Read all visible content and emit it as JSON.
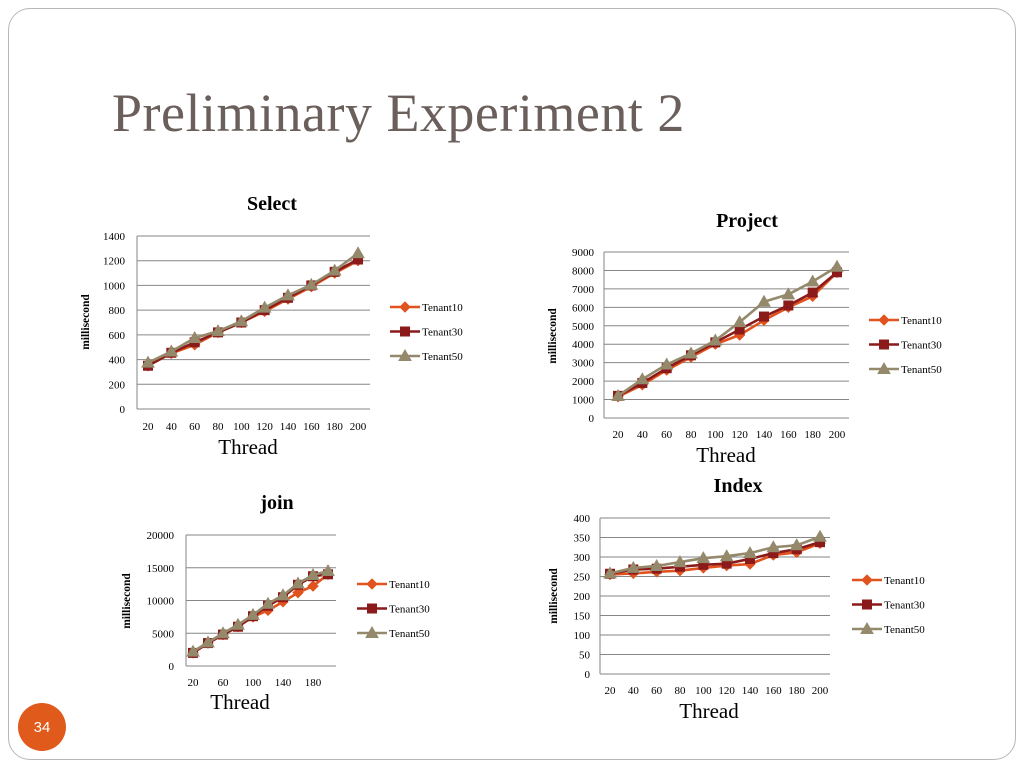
{
  "slide": {
    "title": "Preliminary  Experiment 2",
    "page_number": "34"
  },
  "colors": {
    "tenant10": "#e0531f",
    "tenant30": "#8b1a1a",
    "tenant50": "#94896b"
  },
  "chart_data": [
    {
      "type": "line",
      "title": "Select",
      "xlabel": "Thread",
      "ylabel": "millisecond",
      "categories": [
        "20",
        "40",
        "60",
        "80",
        "100",
        "120",
        "140",
        "160",
        "180",
        "200"
      ],
      "ylim": [
        0,
        1400
      ],
      "yticks": [
        0,
        200,
        400,
        600,
        800,
        1000,
        1200,
        1400
      ],
      "grid": true,
      "legend": "right",
      "series": [
        {
          "name": "Tenant10",
          "values": [
            350,
            450,
            520,
            620,
            700,
            790,
            890,
            990,
            1100,
            1200
          ]
        },
        {
          "name": "Tenant30",
          "values": [
            350,
            455,
            540,
            620,
            700,
            800,
            900,
            1000,
            1110,
            1210
          ]
        },
        {
          "name": "Tenant50",
          "values": [
            375,
            465,
            575,
            630,
            710,
            820,
            920,
            1005,
            1120,
            1260
          ]
        }
      ]
    },
    {
      "type": "line",
      "title": "Project",
      "xlabel": "Thread",
      "ylabel": "millisecond",
      "categories": [
        "20",
        "40",
        "60",
        "80",
        "100",
        "120",
        "140",
        "160",
        "180",
        "200"
      ],
      "ylim": [
        0,
        9000
      ],
      "yticks": [
        0,
        1000,
        2000,
        3000,
        4000,
        5000,
        6000,
        7000,
        8000,
        9000
      ],
      "grid": true,
      "legend": "right",
      "series": [
        {
          "name": "Tenant10",
          "values": [
            1150,
            1800,
            2600,
            3300,
            4000,
            4500,
            5300,
            6000,
            6600,
            7900
          ]
        },
        {
          "name": "Tenant30",
          "values": [
            1200,
            1900,
            2700,
            3400,
            4100,
            4800,
            5500,
            6100,
            6800,
            7900
          ]
        },
        {
          "name": "Tenant50",
          "values": [
            1200,
            2100,
            2900,
            3500,
            4200,
            5200,
            6300,
            6700,
            7400,
            8200
          ]
        }
      ]
    },
    {
      "type": "line",
      "title": "join",
      "xlabel": "Thread",
      "ylabel": "millisecond",
      "categories": [
        "20",
        "40",
        "60",
        "80",
        "100",
        "120",
        "140",
        "160",
        "180",
        "200"
      ],
      "xticks": [
        "20",
        "60",
        "100",
        "140",
        "180"
      ],
      "ylim": [
        0,
        20000
      ],
      "yticks": [
        0,
        5000,
        10000,
        15000,
        20000
      ],
      "grid": true,
      "legend": "right",
      "series": [
        {
          "name": "Tenant10",
          "values": [
            2000,
            3500,
            4800,
            6000,
            7500,
            8500,
            9800,
            11200,
            12200,
            14000
          ]
        },
        {
          "name": "Tenant30",
          "values": [
            2000,
            3500,
            4800,
            6000,
            7600,
            9200,
            10500,
            12400,
            13700,
            14000
          ]
        },
        {
          "name": "Tenant50",
          "values": [
            2200,
            3600,
            5000,
            6300,
            7800,
            9500,
            10800,
            12600,
            13900,
            14500
          ]
        }
      ]
    },
    {
      "type": "line",
      "title": "Index",
      "xlabel": "Thread",
      "ylabel": "millisecond",
      "categories": [
        "20",
        "40",
        "60",
        "80",
        "100",
        "120",
        "140",
        "160",
        "180",
        "200"
      ],
      "ylim": [
        0,
        400
      ],
      "yticks": [
        0,
        50,
        100,
        150,
        200,
        250,
        300,
        350,
        400
      ],
      "grid": true,
      "legend": "right",
      "series": [
        {
          "name": "Tenant10",
          "values": [
            255,
            258,
            262,
            265,
            272,
            278,
            282,
            305,
            312,
            335
          ]
        },
        {
          "name": "Tenant30",
          "values": [
            257,
            268,
            270,
            275,
            280,
            283,
            295,
            310,
            320,
            338
          ]
        },
        {
          "name": "Tenant50",
          "values": [
            258,
            272,
            277,
            287,
            297,
            302,
            310,
            325,
            330,
            352
          ]
        }
      ]
    }
  ]
}
